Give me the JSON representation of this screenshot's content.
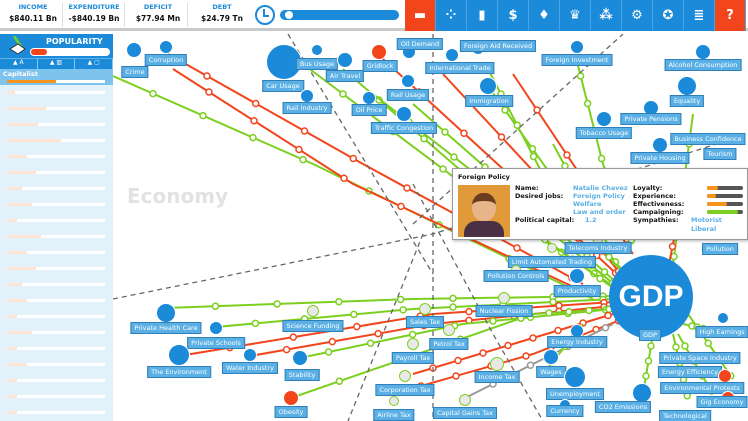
{
  "topbar": {
    "income_label": "INCOME",
    "income": "$840.11 Bn",
    "expenditure_label": "EXPENDITURE",
    "expenditure": "-$840.19 Bn",
    "deficit_label": "DEFICIT",
    "deficit": "$77.94 Mn",
    "debt_label": "DEBT",
    "debt": "$24.79 Tn",
    "time_progress": 0.03,
    "tools": [
      {
        "icon": "gun-icon",
        "glyph": "▬",
        "red": true
      },
      {
        "icon": "dots-icon",
        "glyph": "⁘"
      },
      {
        "icon": "bar-chart-icon",
        "glyph": "▮"
      },
      {
        "icon": "dollar-icon",
        "glyph": "$"
      },
      {
        "icon": "lightbulb-icon",
        "glyph": "♦"
      },
      {
        "icon": "trophy-icon",
        "glyph": "♛"
      },
      {
        "icon": "people-icon",
        "glyph": "⁂"
      },
      {
        "icon": "gear-icon",
        "glyph": "⚙"
      },
      {
        "icon": "ribbon-icon",
        "glyph": "✪"
      },
      {
        "icon": "document-icon",
        "glyph": "≣"
      },
      {
        "icon": "help-icon",
        "glyph": "?",
        "red": true
      }
    ]
  },
  "popularity": {
    "title": "POPULARITY",
    "value": 0.05,
    "group": "Capitalist",
    "group_value": 0.5,
    "rows": [
      0.08,
      0.4,
      0.32,
      0.55,
      0.2,
      0.3,
      0.15,
      0.25,
      0.1,
      0.35,
      0.2,
      0.3,
      0.15,
      0.2,
      0.1,
      0.25,
      0.1,
      0.2,
      0.1,
      0.1,
      0.1
    ]
  },
  "map": {
    "watermark": "Economy",
    "gdp": "GDP",
    "nodes": [
      {
        "label": "Crime",
        "c": "blue"
      },
      {
        "label": "Corruption",
        "c": "blue"
      },
      {
        "label": "Car Usage",
        "c": "blue"
      },
      {
        "label": "Bus Usage",
        "c": "blue"
      },
      {
        "label": "Air Travel",
        "c": "blue"
      },
      {
        "label": "Oil Demand",
        "c": "blue"
      },
      {
        "label": "Gridlock",
        "c": "red"
      },
      {
        "label": "Foreign Aid Received",
        "c": "blue"
      },
      {
        "label": "International Trade",
        "c": "blue"
      },
      {
        "label": "Immigration",
        "c": "blue"
      },
      {
        "label": "Rail Usage",
        "c": "blue"
      },
      {
        "label": "Oil Price",
        "c": "blue"
      },
      {
        "label": "Rail Industry",
        "c": "blue"
      },
      {
        "label": "Traffic Congestion",
        "c": "blue"
      },
      {
        "label": "Foreign Investment",
        "c": "blue"
      },
      {
        "label": "Alcohol Consumption",
        "c": "blue"
      },
      {
        "label": "Equality",
        "c": "blue"
      },
      {
        "label": "Tobacco Usage",
        "c": "blue"
      },
      {
        "label": "Private Pensions",
        "c": "blue"
      },
      {
        "label": "Private Housing",
        "c": "blue"
      },
      {
        "label": "Telecoms Industry",
        "c": "gray"
      },
      {
        "label": "Limit Automated Trading",
        "c": "gray"
      },
      {
        "label": "Pollution Controls",
        "c": "gray"
      },
      {
        "label": "Productivity",
        "c": "blue"
      },
      {
        "label": "Nuclear Fission",
        "c": "gray"
      },
      {
        "label": "Sales Tax",
        "c": "gray"
      },
      {
        "label": "Science Funding",
        "c": "gray"
      },
      {
        "label": "Private Health Care",
        "c": "blue"
      },
      {
        "label": "Private Schools",
        "c": "blue"
      },
      {
        "label": "The Environment",
        "c": "blue"
      },
      {
        "label": "Water Industry",
        "c": "blue"
      },
      {
        "label": "Stability",
        "c": "blue"
      },
      {
        "label": "Payroll Tax",
        "c": "gray"
      },
      {
        "label": "Petrol Tax",
        "c": "gray"
      },
      {
        "label": "Energy Industry",
        "c": "blue"
      },
      {
        "label": "Wages",
        "c": "blue"
      },
      {
        "label": "Income Tax",
        "c": "gray"
      },
      {
        "label": "Unemployment",
        "c": "blue"
      },
      {
        "label": "Corporation Tax",
        "c": "gray"
      },
      {
        "label": "Obesity",
        "c": "red"
      },
      {
        "label": "Airline Tax",
        "c": "gray"
      },
      {
        "label": "Capital Gains Tax",
        "c": "gray"
      },
      {
        "label": "GDP",
        "c": "none"
      },
      {
        "label": "High Earnings",
        "c": "blue"
      },
      {
        "label": "Private Space Industry",
        "c": "blue"
      },
      {
        "label": "Energy Efficiency",
        "c": "blue"
      },
      {
        "label": "Environmental Protests",
        "c": "red"
      },
      {
        "label": "CO2 Emissions",
        "c": "blue"
      },
      {
        "label": "Currency",
        "c": "blue"
      },
      {
        "label": "Technological",
        "c": "blue"
      },
      {
        "label": "Gig Economy",
        "c": "red"
      }
    ],
    "overlay": [
      "Business Confidence",
      "Tourism",
      "Pollution"
    ]
  },
  "tooltip": {
    "title": "Foreign Policy",
    "name_k": "Name:",
    "name": "Natalie Chavez",
    "jobs_k": "Desired jobs:",
    "jobs": [
      "Foreign Policy",
      "Welfare",
      "Law and order"
    ],
    "capital_k": "Political capital:",
    "capital": "1.2",
    "loyalty_k": "Loyalty:",
    "loyalty": 0.3,
    "experience_k": "Experience:",
    "experience": 0.25,
    "effectiveness_k": "Effectiveness:",
    "effectiveness": 0.55,
    "campaigning_k": "Campaigning:",
    "campaigning": 0.85,
    "sympathies_k": "Sympathies:",
    "sympathies": [
      "Motorist",
      "Liberal"
    ]
  },
  "colors": {
    "accent": "#1b8ad8",
    "red": "#f2451c",
    "green": "#7ccf1e",
    "orange": "#f7941d"
  }
}
